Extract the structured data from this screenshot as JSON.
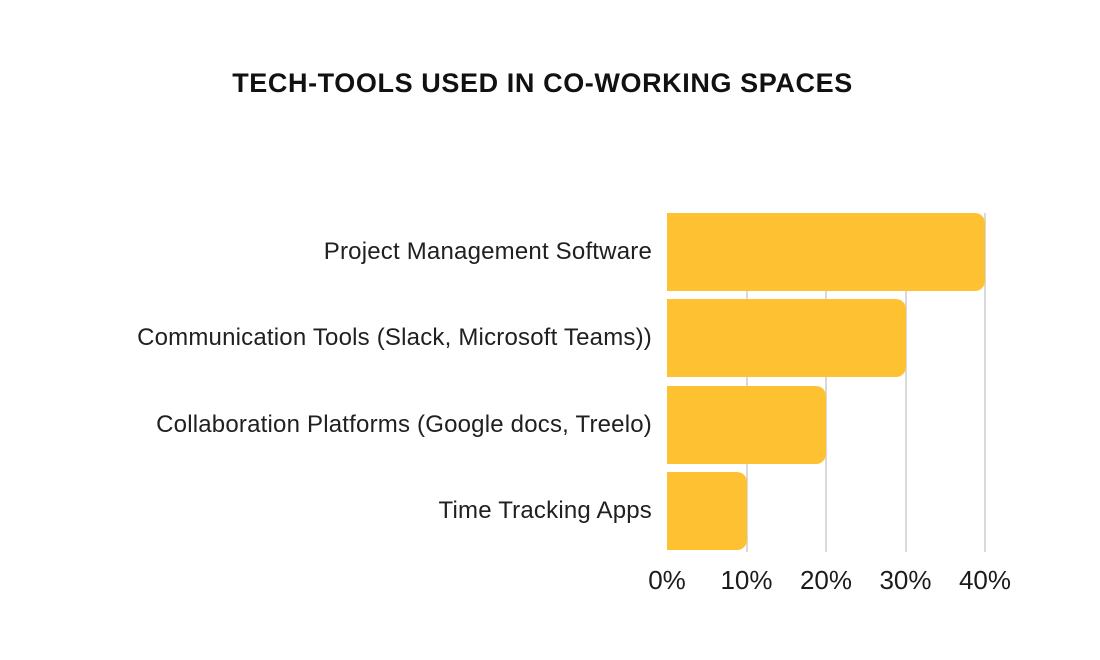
{
  "title": "TECH-TOOLS USED IN CO-WORKING SPACES",
  "colors": {
    "bar": "#FEC132",
    "gridline": "#D9D9D9",
    "title_text": "#111111",
    "label_text": "#202020",
    "background": "#FFFFFF"
  },
  "chart_data": {
    "type": "bar",
    "orientation": "horizontal",
    "title": "TECH-TOOLS USED IN CO-WORKING SPACES",
    "categories": [
      "Project Management Software",
      "Communication Tools (Slack, Microsoft Teams))",
      "Collaboration Platforms (Google docs, Treelo)",
      "Time Tracking Apps"
    ],
    "values": [
      40,
      30,
      20,
      10
    ],
    "unit": "%",
    "xlabel": "",
    "ylabel": "",
    "xlim": [
      0,
      40
    ],
    "x_ticks": [
      "0%",
      "10%",
      "20%",
      "30%",
      "40%"
    ],
    "x_tick_values": [
      0,
      10,
      20,
      30,
      40
    ],
    "grid": "vertical-only",
    "legend": "none",
    "bar_corner_style": "rounded-right"
  }
}
